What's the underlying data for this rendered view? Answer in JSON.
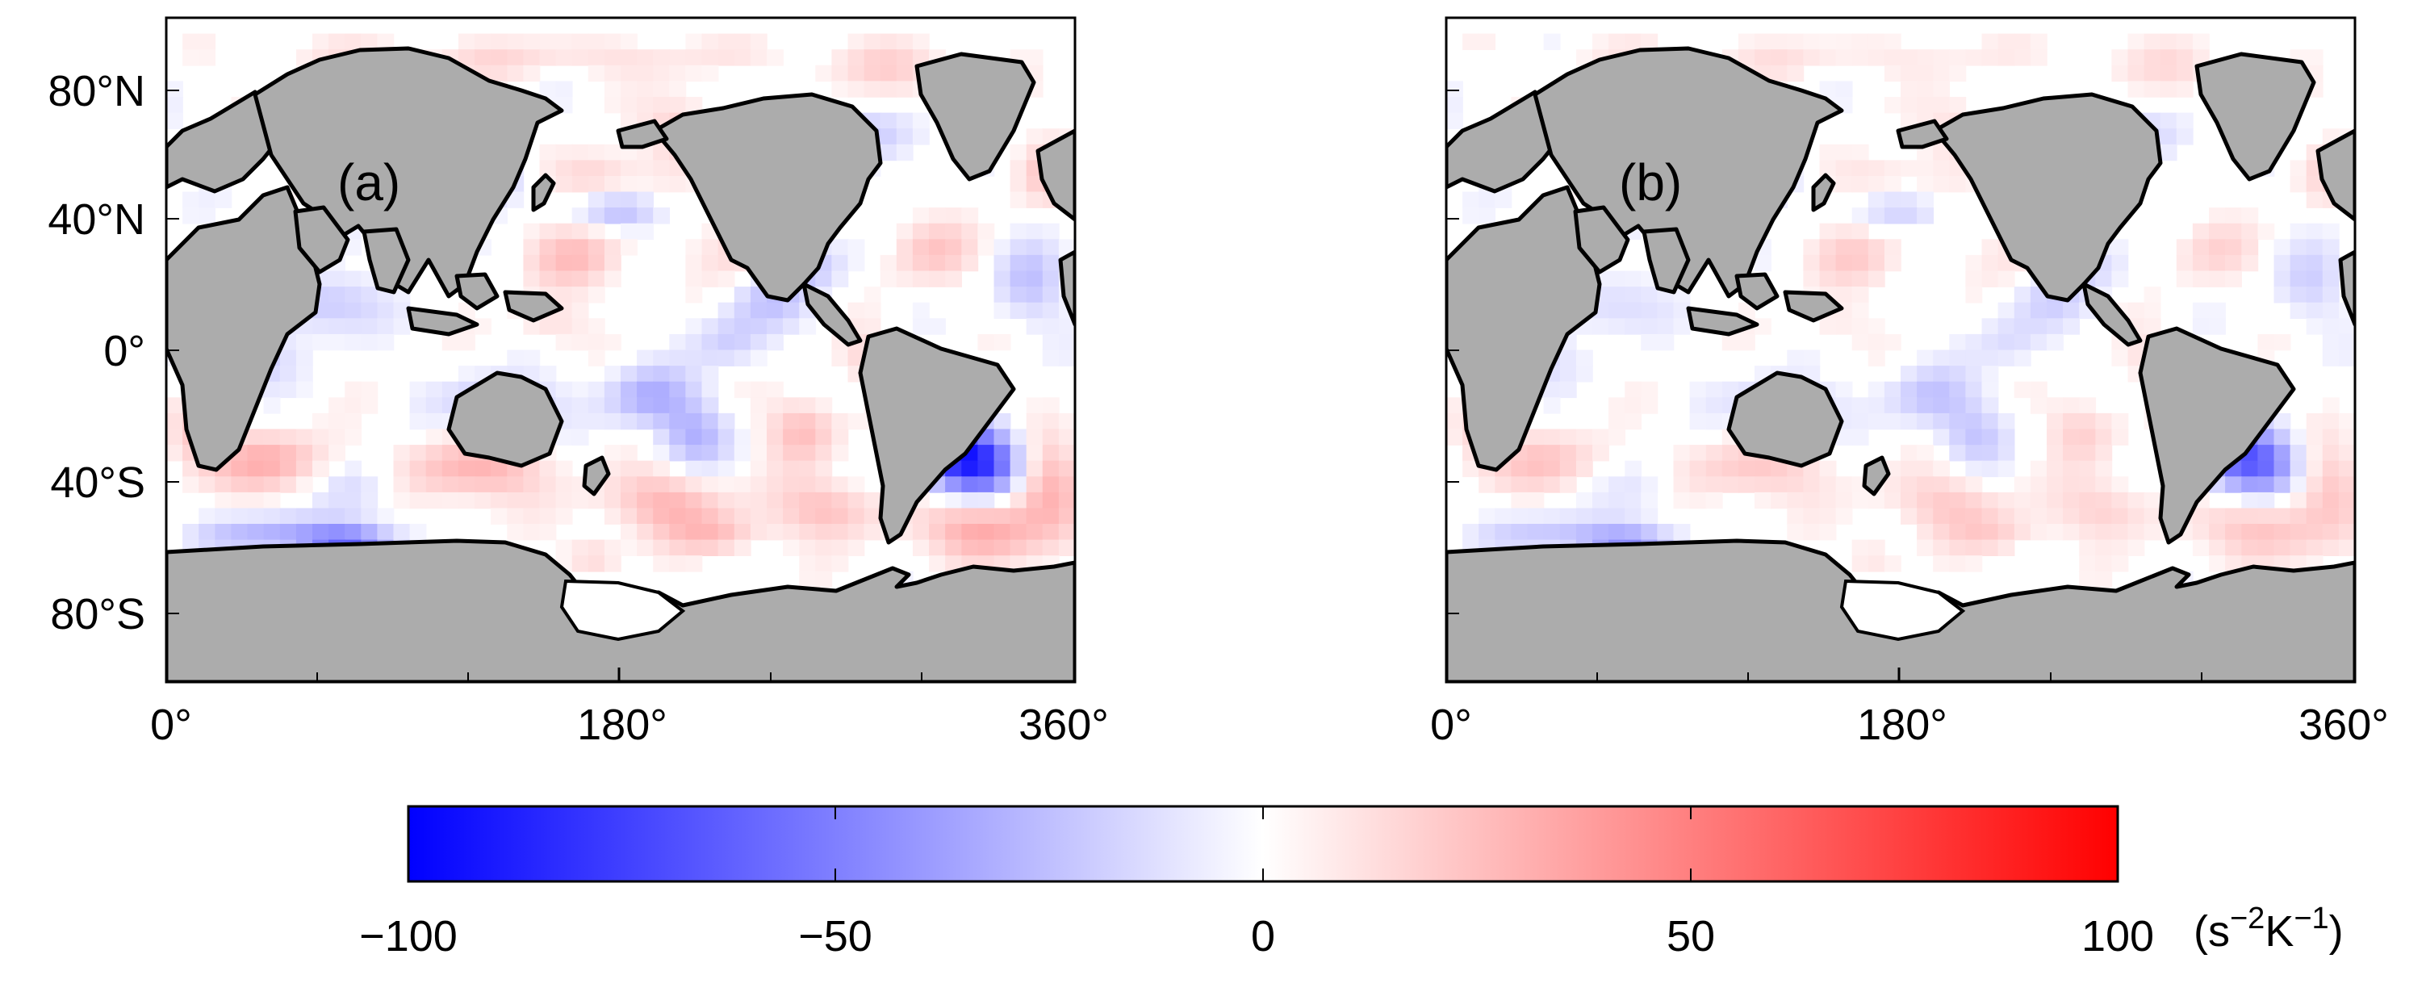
{
  "figure": {
    "panels": [
      {
        "label": "(a)",
        "y_ticks": [
          "80°N",
          "40°N",
          "0°",
          "40°S",
          "80°S"
        ],
        "x_ticks": [
          "0°",
          "180°",
          "360°"
        ]
      },
      {
        "label": "(b)",
        "y_ticks": [],
        "x_ticks": [
          "0°",
          "180°",
          "360°"
        ]
      }
    ],
    "colorbar": {
      "ticks": [
        "−100",
        "−50",
        "0",
        "50",
        "100"
      ],
      "unit_base": "(s",
      "unit_exp1": "−2",
      "unit_mid": "K",
      "unit_exp2": "−1",
      "unit_end": ")",
      "range": [
        -100,
        100
      ],
      "colors": {
        "low": "#0000ff",
        "mid": "#ffffff",
        "high": "#ff0000"
      }
    },
    "colors": {
      "land": "#acacac",
      "coast": "#000000",
      "frame": "#000000"
    }
  }
}
